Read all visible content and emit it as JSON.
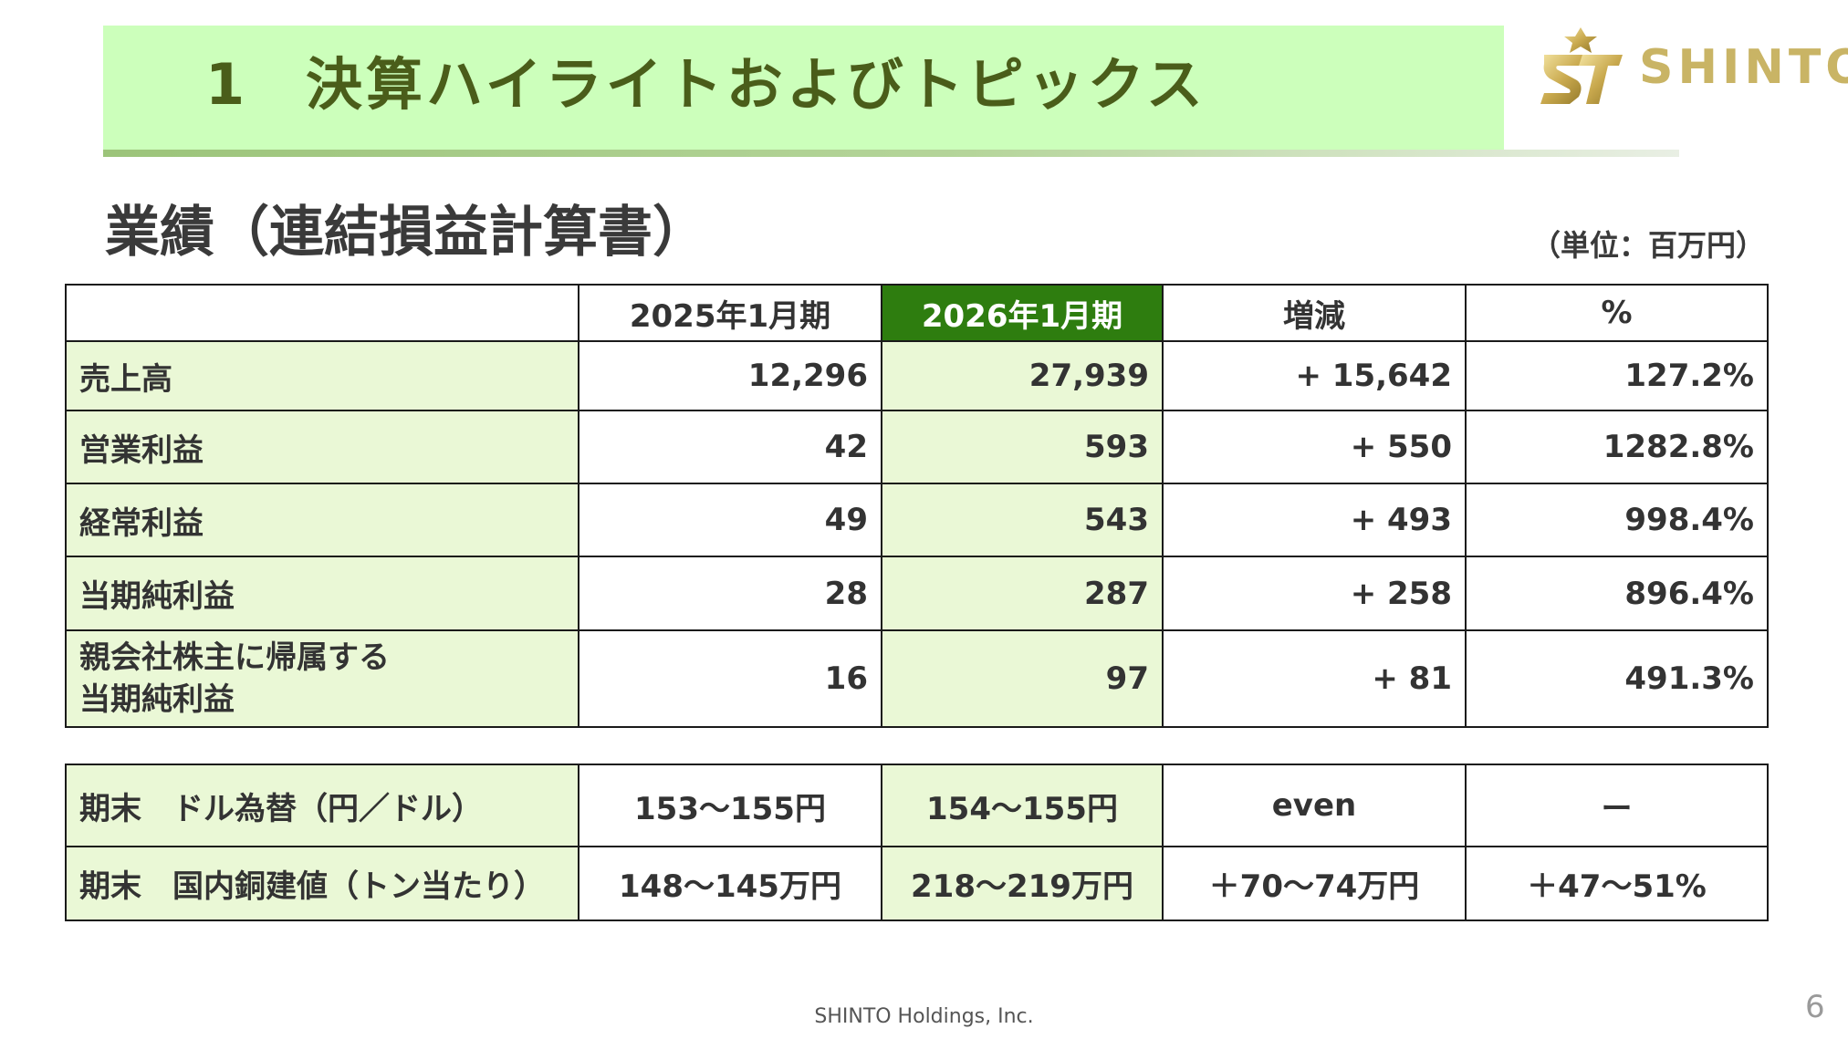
{
  "header": {
    "number": "1",
    "title": "決算ハイライトおよびトピックス"
  },
  "logo": {
    "text": "SHINTO",
    "color": "#c9b465"
  },
  "section": {
    "title": "業績（連結損益計算書）",
    "unit": "（単位：百万円）"
  },
  "pl_table": {
    "columns": [
      "",
      "2025年1月期",
      "2026年1月期",
      "増減",
      "%"
    ],
    "rows": [
      {
        "label": "売上高",
        "prev": "12,296",
        "curr": "27,939",
        "change": "+ 15,642",
        "pct": "127.2%"
      },
      {
        "label": "営業利益",
        "prev": "42",
        "curr": "593",
        "change": "+ 550",
        "pct": "1282.8%"
      },
      {
        "label": "経常利益",
        "prev": "49",
        "curr": "543",
        "change": "+ 493",
        "pct": "998.4%"
      },
      {
        "label": "当期純利益",
        "prev": "28",
        "curr": "287",
        "change": "+ 258",
        "pct": "896.4%"
      },
      {
        "label_line1": "親会社株主に帰属する",
        "label_line2": "当期純利益",
        "prev": "16",
        "curr": "97",
        "change": "+ 81",
        "pct": "491.3%"
      }
    ]
  },
  "market_table": {
    "rows": [
      {
        "label": "期末　ドル為替（円／ドル）",
        "prev": "153～155円",
        "curr": "154～155円",
        "change": "even",
        "pct": "ー"
      },
      {
        "label": "期末　国内銅建値（トン当たり）",
        "prev": "148～145万円",
        "curr": "218～219万円",
        "change": "＋70～74万円",
        "pct": "＋47～51%"
      }
    ]
  },
  "colors": {
    "title_band": "#ccffbb",
    "highlight_header": "#2e7d0f",
    "label_fill": "#eaf8d6"
  },
  "footer": {
    "company": "SHINTO Holdings, Inc.",
    "page": "6"
  }
}
